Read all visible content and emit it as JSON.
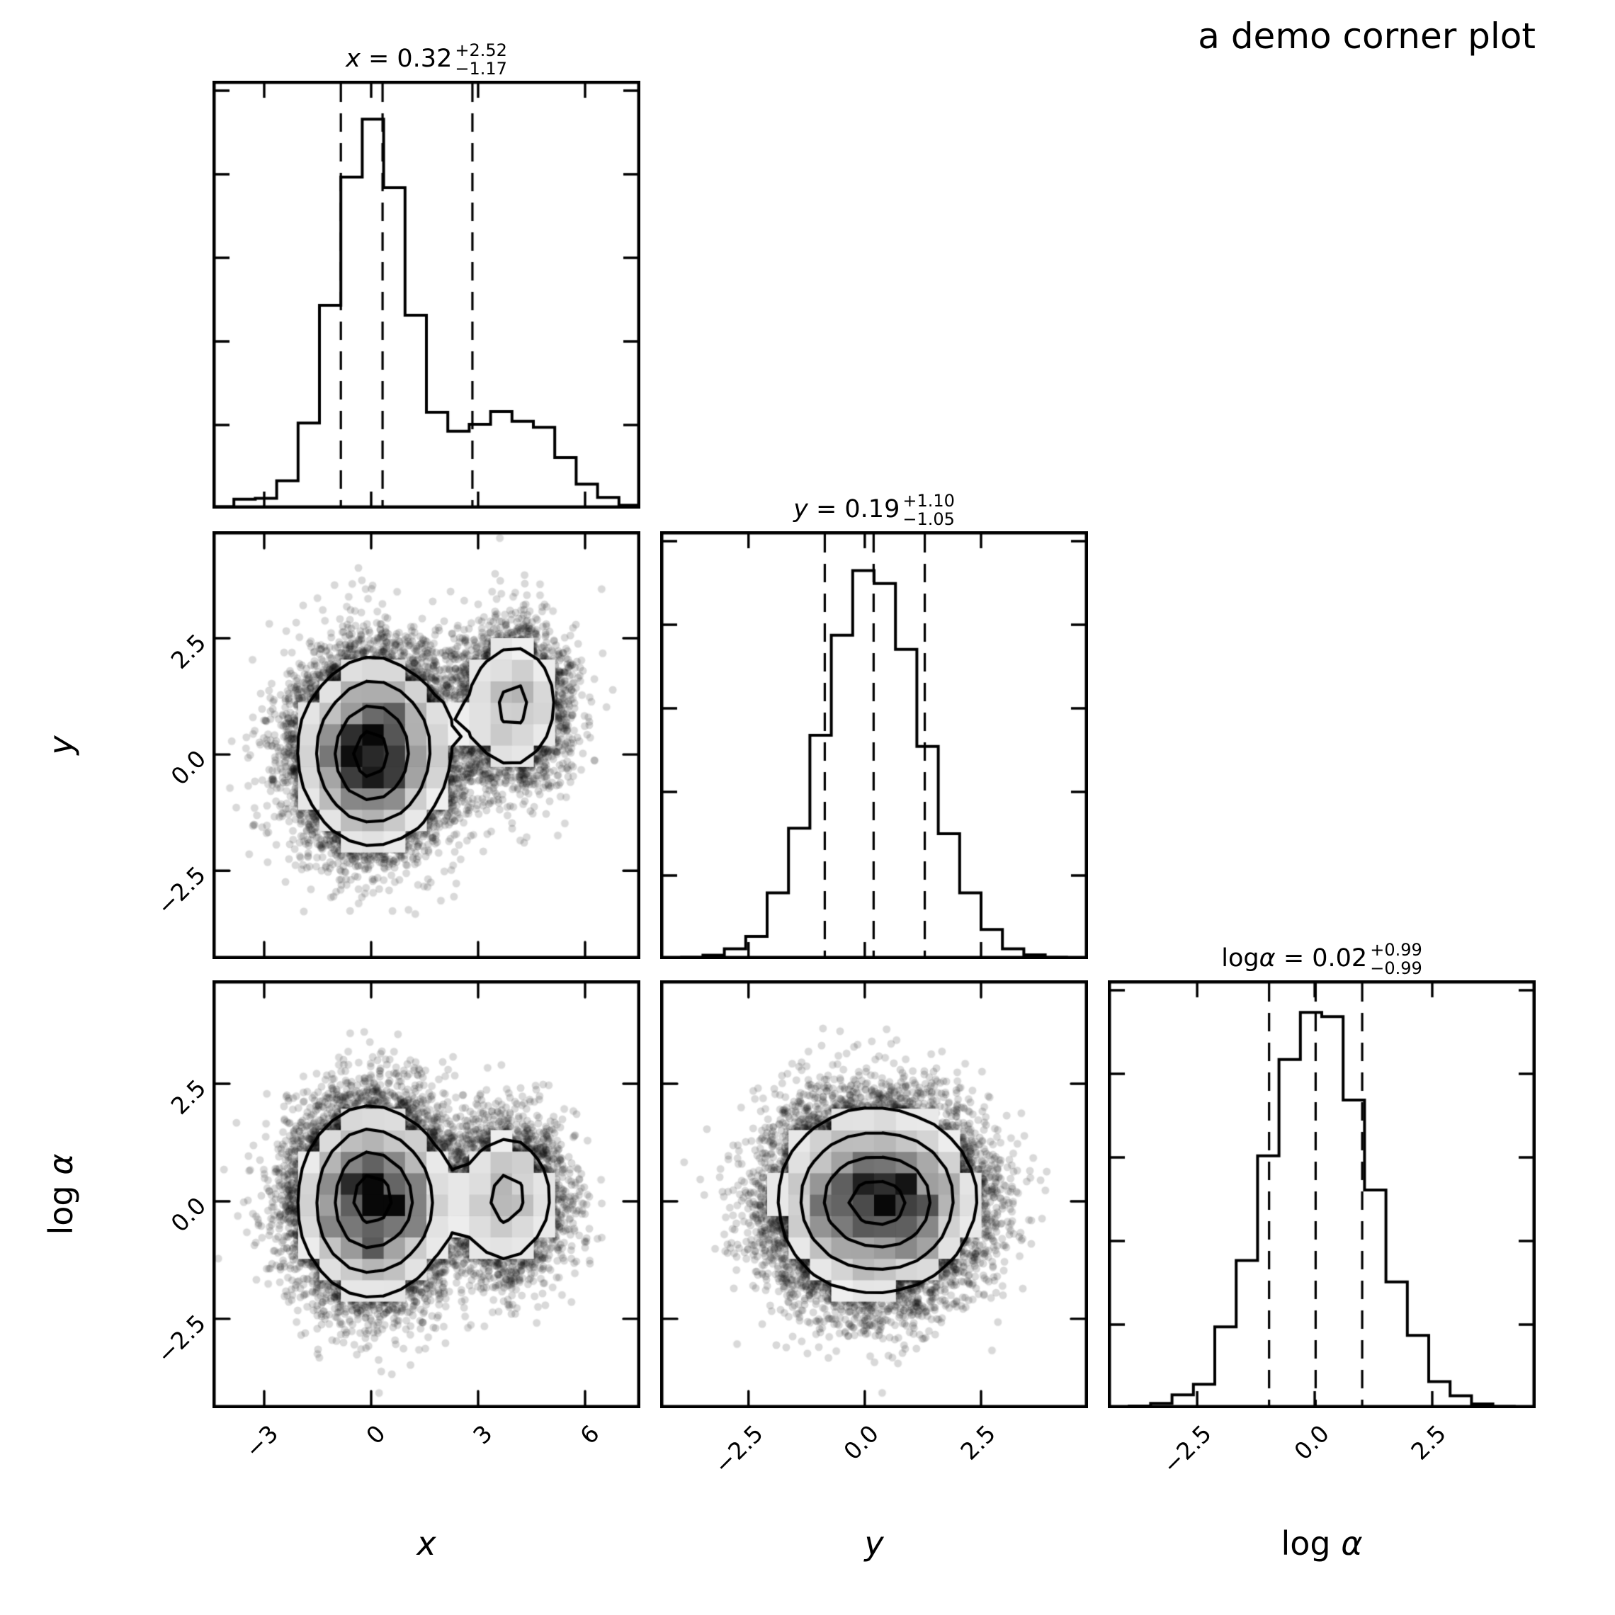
{
  "chart_data": {
    "type": "corner",
    "title": "a demo corner plot",
    "background": "#ffffff",
    "line_color": "#000000",
    "contour_levels_rel": [
      0.1353,
      0.3247,
      0.6065,
      0.8825
    ],
    "point_style": {
      "radius_px": 5.5,
      "alpha": 0.15,
      "color": "#000000",
      "n_points": 16000
    },
    "grid": {
      "fill_bins": 20,
      "contour_bins": 26
    },
    "parameters": [
      {
        "id": "x",
        "label": "x",
        "label_prefix": "",
        "summary": {
          "lhs": "x",
          "median": "0.32",
          "upper": "+2.52",
          "lower": "−1.17"
        },
        "range": [
          -4.45,
          7.55
        ],
        "ticks": [
          {
            "value": -3,
            "label": "−3"
          },
          {
            "value": 0,
            "label": "0"
          },
          {
            "value": 3,
            "label": "3"
          },
          {
            "value": 6,
            "label": "6"
          }
        ],
        "quantile_lines": [
          -0.85,
          0.32,
          2.84
        ],
        "hist_heights": [
          0.004,
          0.022,
          0.024,
          0.065,
          0.2,
          0.475,
          0.775,
          0.91,
          0.75,
          0.452,
          0.225,
          0.181,
          0.197,
          0.227,
          0.204,
          0.19,
          0.119,
          0.057,
          0.026,
          0.008
        ]
      },
      {
        "id": "y",
        "label": "y",
        "label_prefix": "",
        "summary": {
          "lhs": "y",
          "median": "0.19",
          "upper": "+1.10",
          "lower": "−1.05"
        },
        "range": [
          -4.4,
          4.8
        ],
        "ticks": [
          {
            "value": -2.5,
            "label": "−2.5"
          },
          {
            "value": 0,
            "label": "0.0"
          },
          {
            "value": 2.5,
            "label": "2.5"
          }
        ],
        "quantile_lines": [
          -0.86,
          0.19,
          1.29
        ],
        "hist_heights": [
          0.002,
          0.004,
          0.009,
          0.024,
          0.053,
          0.155,
          0.306,
          0.523,
          0.757,
          0.908,
          0.878,
          0.724,
          0.497,
          0.293,
          0.155,
          0.069,
          0.024,
          0.01,
          0.004,
          0.002
        ]
      },
      {
        "id": "log_alpha",
        "label": "α",
        "label_prefix": "log ",
        "summary": {
          "lhs": "log α",
          "median": "0.02",
          "upper": "+0.99",
          "lower": "−0.99"
        },
        "range": [
          -4.4,
          4.7
        ],
        "ticks": [
          {
            "value": -2.5,
            "label": "−2.5"
          },
          {
            "value": 0,
            "label": "0.0"
          },
          {
            "value": 2.5,
            "label": "2.5"
          }
        ],
        "quantile_lines": [
          -0.97,
          0.02,
          1.01
        ],
        "hist_heights": [
          0.002,
          0.005,
          0.011,
          0.031,
          0.056,
          0.19,
          0.345,
          0.59,
          0.815,
          0.925,
          0.915,
          0.72,
          0.51,
          0.295,
          0.17,
          0.062,
          0.029,
          0.01,
          0.004,
          0.002
        ]
      }
    ],
    "scatter_panels": [
      {
        "x_param": "x",
        "y_param": "y",
        "seed": 11,
        "components": [
          {
            "w": 0.8,
            "mx": 0.05,
            "my": 0.05,
            "sx": 1.05,
            "sy": 1.0
          },
          {
            "w": 0.2,
            "mx": 3.95,
            "my": 1.05,
            "sx": 0.82,
            "sy": 0.85
          }
        ]
      },
      {
        "x_param": "x",
        "y_param": "log_alpha",
        "seed": 12,
        "components": [
          {
            "w": 0.8,
            "mx": 0.05,
            "my": 0.0,
            "sx": 1.05,
            "sy": 1.0
          },
          {
            "w": 0.2,
            "mx": 3.8,
            "my": 0.05,
            "sx": 0.82,
            "sy": 0.85
          }
        ]
      },
      {
        "x_param": "y",
        "y_param": "log_alpha",
        "seed": 13,
        "components": [
          {
            "w": 0.8,
            "mx": 0.05,
            "my": 0.0,
            "sx": 1.0,
            "sy": 1.0
          },
          {
            "w": 0.2,
            "mx": 1.05,
            "my": 0.05,
            "sx": 0.85,
            "sy": 0.85
          }
        ]
      }
    ]
  }
}
